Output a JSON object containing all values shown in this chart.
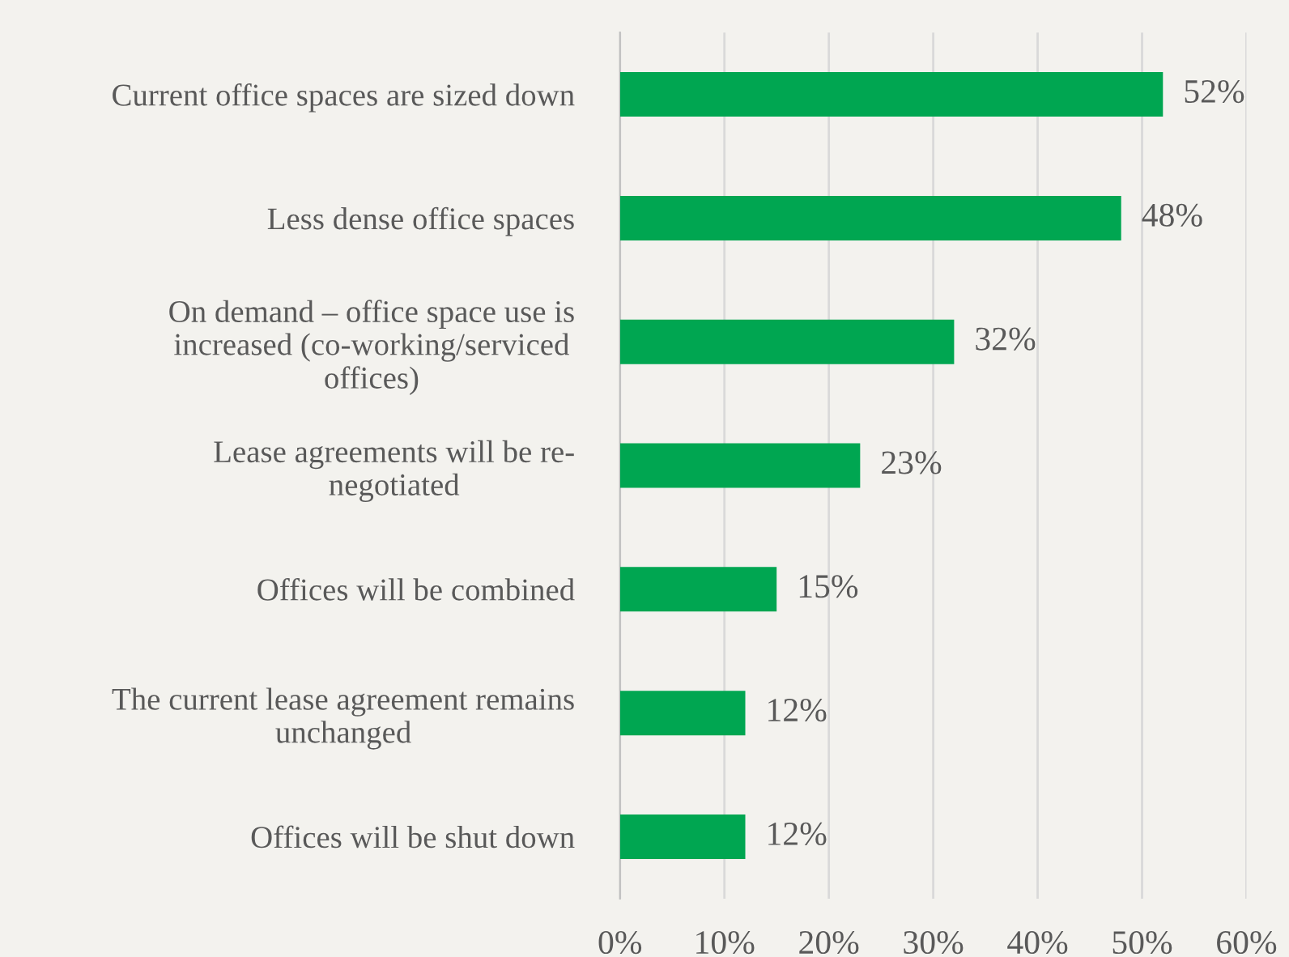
{
  "chart_data": {
    "type": "bar",
    "orientation": "horizontal",
    "categories": [
      "Current office spaces are sized down",
      "Less dense office spaces",
      "On demand – office space use is\nincreased (co-working/serviced\noffices)",
      "Lease agreements will be re-\nnegotiated",
      "Offices will be combined",
      "The current lease agreement remains\nunchanged",
      "Offices will be shut down"
    ],
    "values": [
      52,
      48,
      32,
      23,
      15,
      12,
      12
    ],
    "value_labels": [
      "52%",
      "48%",
      "32%",
      "23%",
      "15%",
      "12%",
      "12%"
    ],
    "color": "#00a651",
    "xlim": [
      0,
      60
    ],
    "xticks": [
      {
        "value": 0,
        "label": "0%"
      },
      {
        "value": 10,
        "label": "10%"
      },
      {
        "value": 20,
        "label": "20%"
      },
      {
        "value": 30,
        "label": "30%"
      },
      {
        "value": 40,
        "label": "40%"
      },
      {
        "value": 50,
        "label": "50%"
      },
      {
        "value": 60,
        "label": "60%"
      }
    ],
    "grid": "x"
  }
}
